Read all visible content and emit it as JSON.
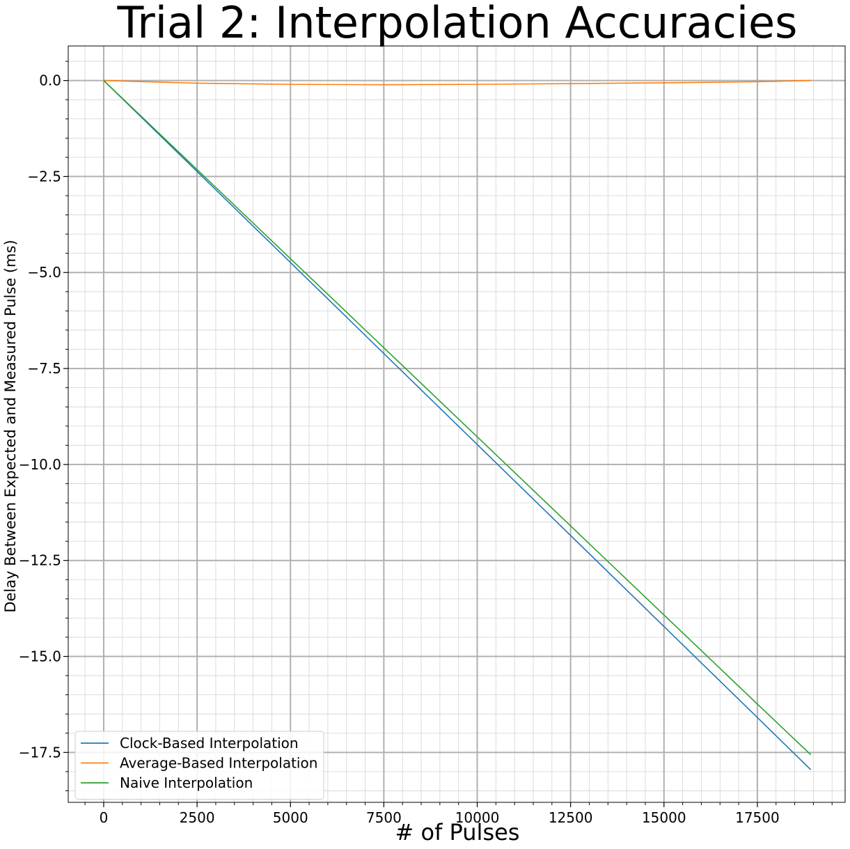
{
  "chart_data": {
    "type": "line",
    "title": "Trial 2: Interpolation Accuracies",
    "xlabel": "# of Pulses",
    "ylabel": "Delay Between Expected and Measured Pulse (ms)",
    "xlim": [
      -950,
      19850
    ],
    "ylim": [
      -18.8,
      0.9
    ],
    "x_ticks": [
      0,
      2500,
      5000,
      7500,
      10000,
      12500,
      15000,
      17500
    ],
    "x_tick_labels": [
      "0",
      "2500",
      "5000",
      "7500",
      "10000",
      "12500",
      "15000",
      "17500"
    ],
    "y_ticks": [
      0.0,
      -2.5,
      -5.0,
      -7.5,
      -10.0,
      -12.5,
      -15.0,
      -17.5
    ],
    "y_tick_labels": [
      "0.0",
      "−2.5",
      "−5.0",
      "−7.5",
      "−10.0",
      "−12.5",
      "−15.0",
      "−17.5"
    ],
    "grid": "major and minor",
    "legend_position": "lower-left",
    "series": [
      {
        "name": "Clock-Based Interpolation",
        "color": "#1f77b4",
        "x": [
          0,
          2500,
          5000,
          7500,
          10000,
          12500,
          15000,
          17500,
          18930
        ],
        "y": [
          0,
          -2.37,
          -4.74,
          -7.11,
          -9.48,
          -11.85,
          -14.22,
          -16.59,
          -17.95
        ]
      },
      {
        "name": "Average-Based Interpolation",
        "color": "#ff7f0e",
        "x": [
          0,
          2500,
          5000,
          7500,
          10000,
          12500,
          15000,
          17500,
          18930
        ],
        "y": [
          0,
          -0.07,
          -0.1,
          -0.11,
          -0.1,
          -0.08,
          -0.06,
          -0.03,
          0
        ]
      },
      {
        "name": "Naive Interpolation",
        "color": "#2ca02c",
        "x": [
          0,
          2500,
          5000,
          7500,
          10000,
          12500,
          15000,
          17500,
          18930
        ],
        "y": [
          0,
          -2.32,
          -4.64,
          -6.96,
          -9.28,
          -11.6,
          -13.92,
          -16.24,
          -17.56
        ]
      }
    ]
  }
}
